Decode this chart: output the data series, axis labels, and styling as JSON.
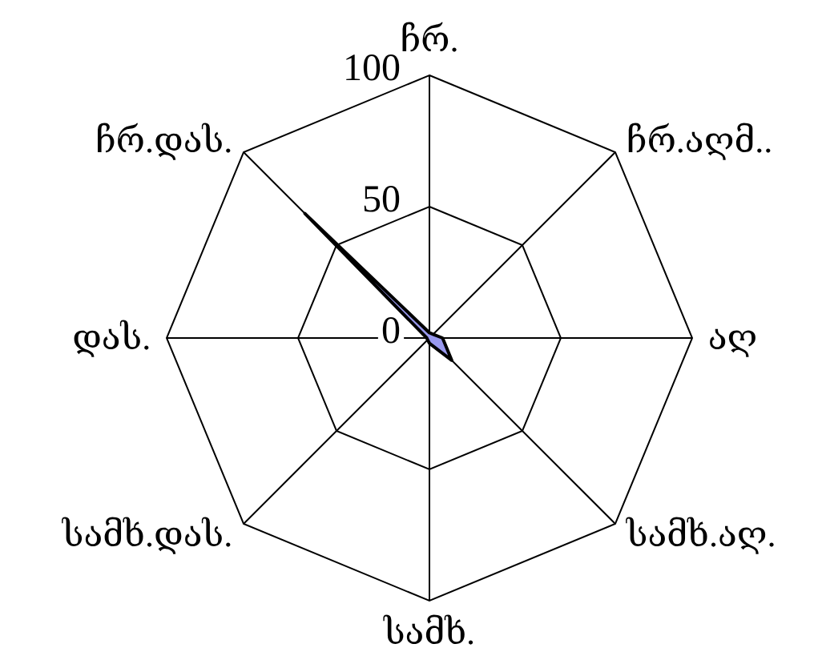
{
  "chart_data": {
    "type": "radar",
    "categories": [
      "ჩრ.",
      "ჩრ.აღმ..",
      "აღ",
      "სამხ.აღ.",
      "სამხ.",
      "სამხ.დას.",
      "დას.",
      "ჩრ.დას."
    ],
    "series": [
      {
        "color": "#9999ee",
        "values": [
          2,
          2,
          5,
          12,
          2,
          1,
          1,
          67
        ]
      }
    ],
    "ylim": [
      0,
      100
    ],
    "yticks": [
      0,
      50,
      100
    ],
    "grid": true
  }
}
